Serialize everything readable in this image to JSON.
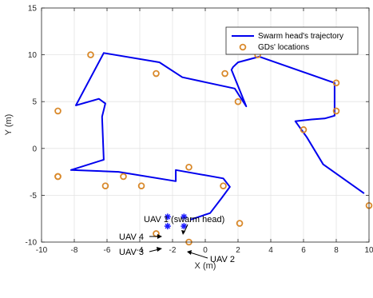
{
  "chart_data": {
    "type": "line",
    "xlabel": "X (m)",
    "ylabel": "Y (m)",
    "xlim": [
      -10,
      10
    ],
    "ylim": [
      -10,
      15
    ],
    "xticks": [
      -10,
      -8,
      -6,
      -4,
      -2,
      0,
      2,
      4,
      6,
      8,
      10
    ],
    "yticks": [
      -10,
      -5,
      0,
      5,
      10,
      15
    ],
    "grid": true,
    "legend_position": "top-right",
    "legend": {
      "trajectory_label": "Swarm head's trajectory",
      "gds_label": "GDs' locations"
    },
    "colors": {
      "trajectory": "#0000ee",
      "gds": "#d9892b",
      "uav_marker": "#1a1aff",
      "grid": "#e3e3e3",
      "axis": "#262626"
    },
    "trajectory": {
      "name": "Swarm head's trajectory",
      "x": [
        -0.9,
        0.3,
        1.0,
        1.5,
        1.1,
        -1.8,
        -1.8,
        -5.3,
        -8.2,
        -6.2,
        -6.3,
        -6.1,
        -6.5,
        -7.9,
        -6.2,
        -2.8,
        -1.4,
        1.8,
        2.5,
        1.6,
        1.7,
        2.0,
        3.3,
        7.9,
        7.9,
        7.3,
        6.5,
        5.5,
        6.2,
        7.2,
        9.7
      ],
      "y": [
        -7.6,
        -6.9,
        -5.3,
        -4.1,
        -3.2,
        -2.3,
        -3.5,
        -2.5,
        -2.3,
        -1.2,
        3.4,
        4.8,
        5.3,
        4.6,
        10.2,
        9.2,
        7.6,
        6.4,
        4.5,
        8.4,
        8.7,
        9.2,
        9.8,
        7.0,
        3.5,
        3.2,
        3.1,
        2.9,
        1.2,
        -1.7,
        -4.8
      ]
    },
    "gds": {
      "name": "GDs' locations",
      "x": [
        -9.0,
        -7.0,
        -3.0,
        1.2,
        3.2,
        8.0,
        -9.0,
        2.0,
        8.0,
        6.0,
        -9.0,
        -6.1,
        -5.0,
        -3.9,
        -1.0,
        1.1,
        10.0,
        2.1,
        -3.0,
        -1.0
      ],
      "y": [
        4.0,
        10.0,
        8.0,
        8.0,
        10.0,
        7.0,
        -3.0,
        5.0,
        4.0,
        2.0,
        -3.0,
        -4.0,
        -3.0,
        -4.0,
        -2.0,
        -4.0,
        -6.1,
        -8.0,
        -9.1,
        -10.0
      ]
    },
    "uavs": [
      {
        "label": "UAV 1 (swarm head)",
        "x": -1.3,
        "y": -7.3
      },
      {
        "label": "UAV 4",
        "x": -2.3,
        "y": -7.3
      },
      {
        "label": "UAV 3",
        "x": -2.3,
        "y": -8.3
      },
      {
        "label": "UAV 2",
        "x": -1.3,
        "y": -8.3
      }
    ]
  }
}
